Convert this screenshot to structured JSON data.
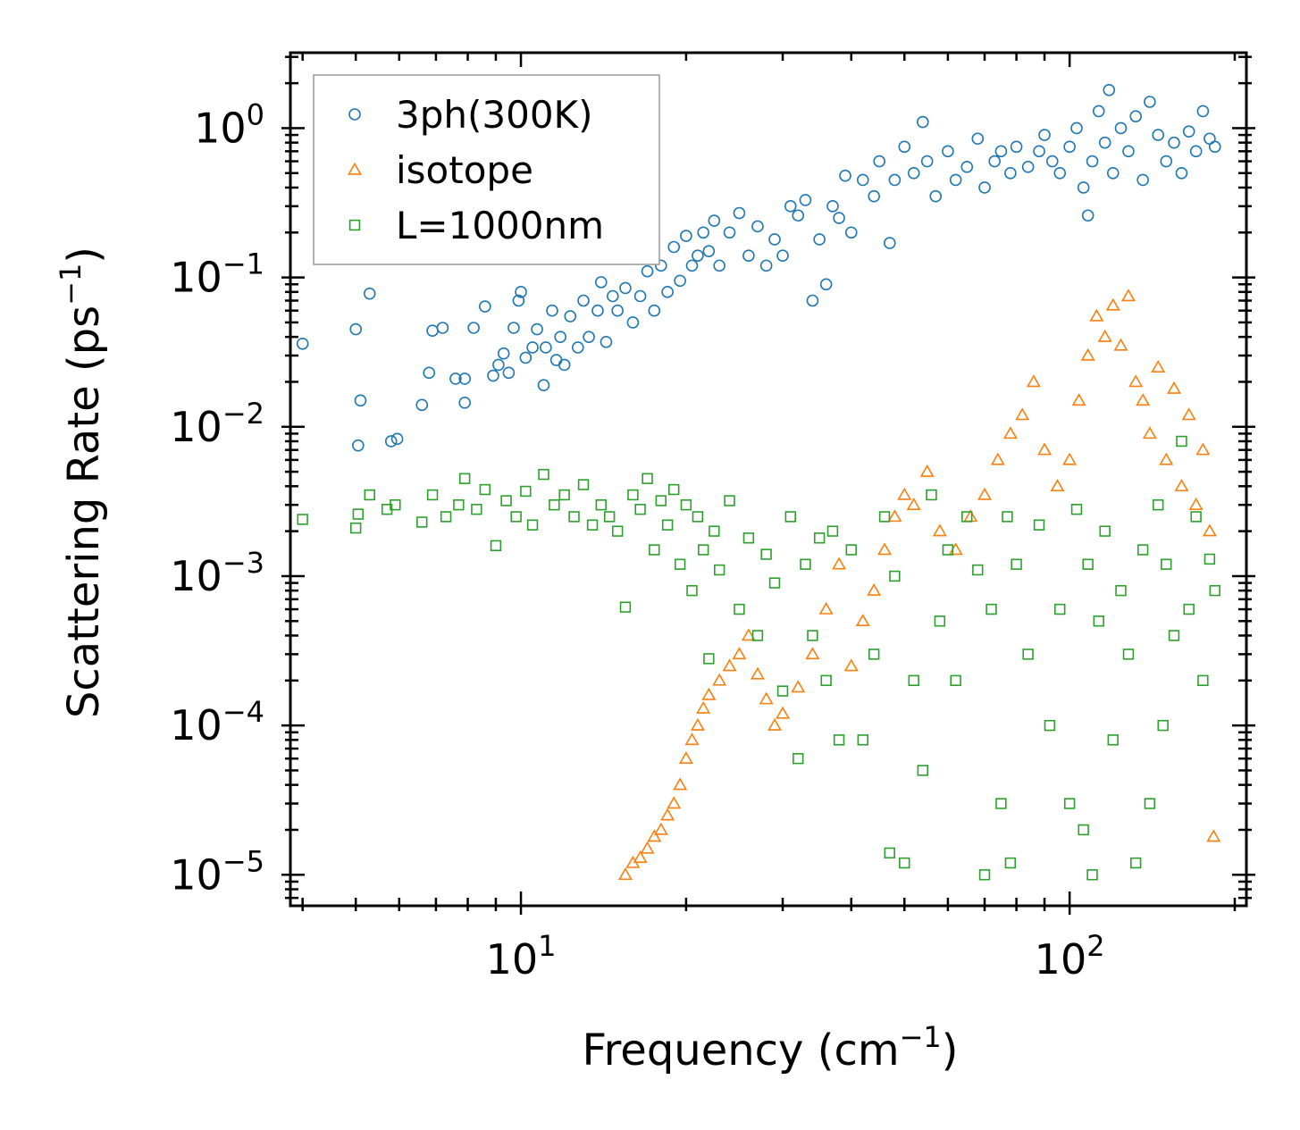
{
  "chart_data": {
    "type": "scatter",
    "xscale": "log",
    "yscale": "log",
    "xlabel": {
      "base": "Frequency (cm",
      "sup": "−1",
      "tail": ")"
    },
    "ylabel": {
      "base": "Scattering Rate (ps",
      "sup": "−1",
      "tail": ")"
    },
    "xlim": [
      3.8,
      210
    ],
    "ylim": [
      6.2e-06,
      3.2
    ],
    "x_ticks": [
      {
        "value": 10,
        "base": "10",
        "exp": "1"
      },
      {
        "value": 100,
        "base": "10",
        "exp": "2"
      }
    ],
    "y_ticks": [
      {
        "value": 1,
        "base": "10",
        "exp": "0"
      },
      {
        "value": 0.1,
        "base": "10",
        "exp": "−1"
      },
      {
        "value": 0.01,
        "base": "10",
        "exp": "−2"
      },
      {
        "value": 0.001,
        "base": "10",
        "exp": "−3"
      },
      {
        "value": 0.0001,
        "base": "10",
        "exp": "−4"
      },
      {
        "value": 1e-05,
        "base": "10",
        "exp": "−5"
      }
    ],
    "legend_position": "upper-left",
    "series": [
      {
        "name": "3ph(300K)",
        "marker": "circle",
        "color": "#1f77b4",
        "points": [
          [
            4.0,
            0.036
          ],
          [
            5.0,
            0.045
          ],
          [
            5.05,
            0.0075
          ],
          [
            5.1,
            0.015
          ],
          [
            5.3,
            0.078
          ],
          [
            5.8,
            0.008
          ],
          [
            5.95,
            0.0083
          ],
          [
            6.6,
            0.014
          ],
          [
            6.8,
            0.023
          ],
          [
            6.9,
            0.044
          ],
          [
            7.2,
            0.046
          ],
          [
            7.6,
            0.021
          ],
          [
            7.9,
            0.021
          ],
          [
            7.9,
            0.0145
          ],
          [
            8.2,
            0.046
          ],
          [
            8.6,
            0.064
          ],
          [
            8.9,
            0.022
          ],
          [
            9.1,
            0.026
          ],
          [
            9.3,
            0.031
          ],
          [
            9.5,
            0.023
          ],
          [
            9.7,
            0.046
          ],
          [
            9.9,
            0.07
          ],
          [
            10.0,
            0.08
          ],
          [
            10.2,
            0.029
          ],
          [
            10.5,
            0.034
          ],
          [
            10.7,
            0.045
          ],
          [
            11.0,
            0.019
          ],
          [
            11.1,
            0.034
          ],
          [
            11.4,
            0.06
          ],
          [
            11.6,
            0.028
          ],
          [
            11.8,
            0.04
          ],
          [
            12.0,
            0.026
          ],
          [
            12.3,
            0.055
          ],
          [
            12.7,
            0.034
          ],
          [
            13.0,
            0.07
          ],
          [
            13.3,
            0.04
          ],
          [
            13.8,
            0.06
          ],
          [
            14.0,
            0.093
          ],
          [
            14.3,
            0.037
          ],
          [
            14.7,
            0.075
          ],
          [
            15.0,
            0.06
          ],
          [
            15.5,
            0.085
          ],
          [
            16.0,
            0.05
          ],
          [
            16.5,
            0.075
          ],
          [
            17.0,
            0.11
          ],
          [
            17.5,
            0.06
          ],
          [
            18.0,
            0.12
          ],
          [
            18.5,
            0.08
          ],
          [
            19.0,
            0.16
          ],
          [
            19.5,
            0.095
          ],
          [
            20.0,
            0.19
          ],
          [
            20.5,
            0.12
          ],
          [
            21.0,
            0.14
          ],
          [
            21.5,
            0.2
          ],
          [
            22.0,
            0.15
          ],
          [
            22.5,
            0.24
          ],
          [
            23.0,
            0.12
          ],
          [
            24.0,
            0.2
          ],
          [
            25.0,
            0.27
          ],
          [
            26.0,
            0.14
          ],
          [
            27.0,
            0.22
          ],
          [
            28.0,
            0.12
          ],
          [
            29.0,
            0.18
          ],
          [
            30.0,
            0.14
          ],
          [
            31.0,
            0.3
          ],
          [
            32.0,
            0.26
          ],
          [
            33.0,
            0.33
          ],
          [
            34.0,
            0.07
          ],
          [
            35.0,
            0.18
          ],
          [
            36.0,
            0.09
          ],
          [
            37.0,
            0.3
          ],
          [
            38.0,
            0.25
          ],
          [
            39.0,
            0.48
          ],
          [
            40.0,
            0.2
          ],
          [
            42.0,
            0.45
          ],
          [
            44.0,
            0.35
          ],
          [
            45.0,
            0.6
          ],
          [
            47.0,
            0.17
          ],
          [
            48.0,
            0.45
          ],
          [
            50.0,
            0.75
          ],
          [
            52.0,
            0.5
          ],
          [
            54.0,
            1.1
          ],
          [
            55.0,
            0.6
          ],
          [
            57.0,
            0.35
          ],
          [
            60.0,
            0.7
          ],
          [
            62.0,
            0.45
          ],
          [
            65.0,
            0.55
          ],
          [
            68.0,
            0.85
          ],
          [
            70.0,
            0.4
          ],
          [
            73.0,
            0.6
          ],
          [
            75.0,
            0.7
          ],
          [
            78.0,
            0.5
          ],
          [
            80.0,
            0.75
          ],
          [
            84.0,
            0.55
          ],
          [
            88.0,
            0.7
          ],
          [
            90.0,
            0.9
          ],
          [
            93.0,
            0.6
          ],
          [
            96.0,
            0.5
          ],
          [
            100.0,
            0.75
          ],
          [
            103.0,
            1.0
          ],
          [
            106.0,
            0.4
          ],
          [
            108.0,
            0.26
          ],
          [
            110.0,
            0.6
          ],
          [
            113.0,
            1.3
          ],
          [
            116.0,
            0.8
          ],
          [
            118.0,
            1.8
          ],
          [
            120.0,
            0.5
          ],
          [
            124.0,
            1.0
          ],
          [
            128.0,
            0.7
          ],
          [
            132.0,
            1.2
          ],
          [
            136.0,
            0.45
          ],
          [
            140.0,
            1.5
          ],
          [
            145.0,
            0.9
          ],
          [
            150.0,
            0.6
          ],
          [
            155.0,
            0.8
          ],
          [
            160.0,
            0.5
          ],
          [
            165.0,
            0.95
          ],
          [
            170.0,
            0.7
          ],
          [
            175.0,
            1.3
          ],
          [
            180.0,
            0.85
          ],
          [
            184.0,
            0.75
          ]
        ]
      },
      {
        "name": "isotope",
        "marker": "triangle",
        "color": "#ff7f0e",
        "points": [
          [
            15.5,
            1e-05
          ],
          [
            16.0,
            1.2e-05
          ],
          [
            16.5,
            1.3e-05
          ],
          [
            17.0,
            1.5e-05
          ],
          [
            17.5,
            1.8e-05
          ],
          [
            18.0,
            2e-05
          ],
          [
            18.5,
            2.5e-05
          ],
          [
            19.0,
            3e-05
          ],
          [
            19.5,
            4e-05
          ],
          [
            20.0,
            6e-05
          ],
          [
            20.5,
            8e-05
          ],
          [
            21.0,
            0.0001
          ],
          [
            21.5,
            0.00013
          ],
          [
            22.0,
            0.00016
          ],
          [
            23.0,
            0.0002
          ],
          [
            24.0,
            0.00025
          ],
          [
            25.0,
            0.0003
          ],
          [
            26.0,
            0.0004
          ],
          [
            27.0,
            0.00022
          ],
          [
            28.0,
            0.00015
          ],
          [
            29.0,
            0.0001
          ],
          [
            30.0,
            0.00012
          ],
          [
            32.0,
            0.00018
          ],
          [
            34.0,
            0.0003
          ],
          [
            36.0,
            0.0006
          ],
          [
            38.0,
            0.0012
          ],
          [
            40.0,
            0.00025
          ],
          [
            42.0,
            0.0005
          ],
          [
            44.0,
            0.0008
          ],
          [
            46.0,
            0.0015
          ],
          [
            48.0,
            0.0025
          ],
          [
            50.0,
            0.0035
          ],
          [
            52.0,
            0.003
          ],
          [
            55.0,
            0.005
          ],
          [
            58.0,
            0.002
          ],
          [
            62.0,
            0.0015
          ],
          [
            66.0,
            0.0025
          ],
          [
            70.0,
            0.0035
          ],
          [
            74.0,
            0.006
          ],
          [
            78.0,
            0.009
          ],
          [
            82.0,
            0.012
          ],
          [
            86.0,
            0.02
          ],
          [
            90.0,
            0.007
          ],
          [
            95.0,
            0.004
          ],
          [
            100.0,
            0.006
          ],
          [
            104.0,
            0.015
          ],
          [
            108.0,
            0.03
          ],
          [
            112.0,
            0.055
          ],
          [
            116.0,
            0.04
          ],
          [
            120.0,
            0.065
          ],
          [
            124.0,
            0.035
          ],
          [
            128.0,
            0.075
          ],
          [
            132.0,
            0.02
          ],
          [
            136.0,
            0.015
          ],
          [
            140.0,
            0.009
          ],
          [
            145.0,
            0.025
          ],
          [
            150.0,
            0.006
          ],
          [
            155.0,
            0.018
          ],
          [
            160.0,
            0.004
          ],
          [
            165.0,
            0.012
          ],
          [
            170.0,
            0.003
          ],
          [
            175.0,
            0.007
          ],
          [
            180.0,
            0.002
          ],
          [
            183.0,
            1.8e-05
          ]
        ]
      },
      {
        "name": "L=1000nm",
        "marker": "square",
        "color": "#2ca02c",
        "points": [
          [
            4.0,
            0.0024
          ],
          [
            5.0,
            0.0021
          ],
          [
            5.05,
            0.0026
          ],
          [
            5.3,
            0.0035
          ],
          [
            5.7,
            0.0028
          ],
          [
            5.9,
            0.003
          ],
          [
            6.6,
            0.0023
          ],
          [
            6.9,
            0.0035
          ],
          [
            7.3,
            0.0025
          ],
          [
            7.7,
            0.003
          ],
          [
            7.9,
            0.0045
          ],
          [
            8.3,
            0.0028
          ],
          [
            8.6,
            0.0038
          ],
          [
            9.0,
            0.0016
          ],
          [
            9.4,
            0.0032
          ],
          [
            9.8,
            0.0025
          ],
          [
            10.2,
            0.0037
          ],
          [
            10.5,
            0.0022
          ],
          [
            11.0,
            0.0048
          ],
          [
            11.5,
            0.003
          ],
          [
            12.0,
            0.0035
          ],
          [
            12.5,
            0.0025
          ],
          [
            13.0,
            0.0041
          ],
          [
            13.5,
            0.0022
          ],
          [
            14.0,
            0.003
          ],
          [
            14.5,
            0.0025
          ],
          [
            15.0,
            0.002
          ],
          [
            15.5,
            0.00062
          ],
          [
            16.0,
            0.0035
          ],
          [
            16.5,
            0.0028
          ],
          [
            17.0,
            0.0045
          ],
          [
            17.5,
            0.0015
          ],
          [
            18.0,
            0.0032
          ],
          [
            18.5,
            0.0022
          ],
          [
            19.0,
            0.0038
          ],
          [
            19.5,
            0.0012
          ],
          [
            20.0,
            0.003
          ],
          [
            20.5,
            0.0008
          ],
          [
            21.0,
            0.0025
          ],
          [
            21.5,
            0.0015
          ],
          [
            22.0,
            0.00028
          ],
          [
            22.5,
            0.002
          ],
          [
            23.0,
            0.0011
          ],
          [
            24.0,
            0.0032
          ],
          [
            25.0,
            0.0006
          ],
          [
            26.0,
            0.0018
          ],
          [
            27.0,
            0.0004
          ],
          [
            28.0,
            0.0014
          ],
          [
            29.0,
            0.0009
          ],
          [
            30.0,
            0.00017
          ],
          [
            31.0,
            0.0025
          ],
          [
            32.0,
            6e-05
          ],
          [
            33.0,
            0.0012
          ],
          [
            34.0,
            0.0004
          ],
          [
            35.0,
            0.0018
          ],
          [
            36.0,
            0.0002
          ],
          [
            37.0,
            0.002
          ],
          [
            38.0,
            8e-05
          ],
          [
            40.0,
            0.0015
          ],
          [
            42.0,
            8e-05
          ],
          [
            44.0,
            0.0003
          ],
          [
            46.0,
            0.0025
          ],
          [
            47.0,
            1.4e-05
          ],
          [
            48.0,
            0.001
          ],
          [
            50.0,
            1.2e-05
          ],
          [
            52.0,
            0.0002
          ],
          [
            54.0,
            5e-05
          ],
          [
            56.0,
            0.0035
          ],
          [
            58.0,
            0.0005
          ],
          [
            60.0,
            0.0015
          ],
          [
            62.0,
            0.0002
          ],
          [
            65.0,
            0.0025
          ],
          [
            68.0,
            0.0011
          ],
          [
            70.0,
            1e-05
          ],
          [
            72.0,
            0.0006
          ],
          [
            75.0,
            3e-05
          ],
          [
            77.0,
            0.0025
          ],
          [
            78.0,
            1.2e-05
          ],
          [
            80.0,
            0.0012
          ],
          [
            84.0,
            0.0003
          ],
          [
            88.0,
            0.0022
          ],
          [
            92.0,
            0.0001
          ],
          [
            96.0,
            0.0006
          ],
          [
            100.0,
            3e-05
          ],
          [
            103.0,
            0.0028
          ],
          [
            106.0,
            2e-05
          ],
          [
            108.0,
            0.0012
          ],
          [
            110.0,
            1e-05
          ],
          [
            113.0,
            0.0005
          ],
          [
            116.0,
            0.002
          ],
          [
            120.0,
            8e-05
          ],
          [
            124.0,
            0.0008
          ],
          [
            128.0,
            0.0003
          ],
          [
            132.0,
            1.2e-05
          ],
          [
            136.0,
            0.0015
          ],
          [
            140.0,
            3e-05
          ],
          [
            145.0,
            0.003
          ],
          [
            148.0,
            0.0001
          ],
          [
            150.0,
            0.0012
          ],
          [
            155.0,
            0.0004
          ],
          [
            160.0,
            0.008
          ],
          [
            165.0,
            0.0006
          ],
          [
            170.0,
            0.0025
          ],
          [
            175.0,
            0.0002
          ],
          [
            180.0,
            0.0013
          ],
          [
            184.0,
            0.0008
          ]
        ]
      }
    ]
  }
}
